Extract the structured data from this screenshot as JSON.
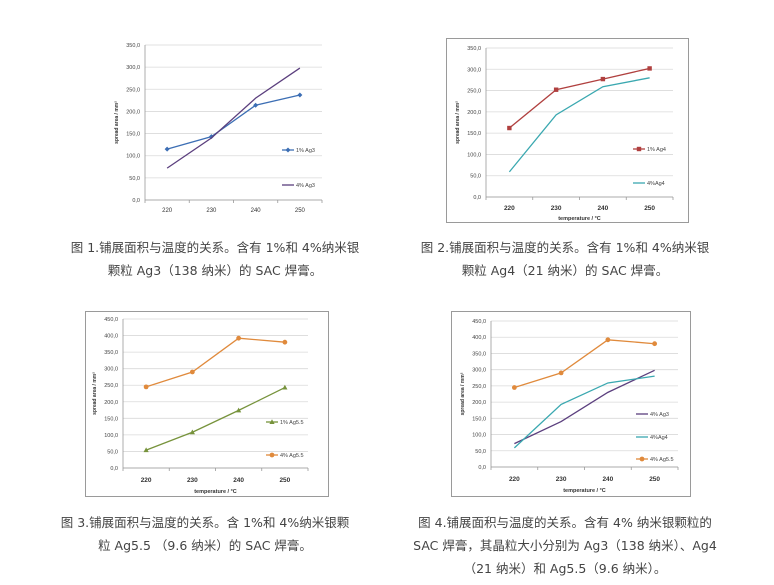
{
  "chart_data": [
    {
      "type": "line",
      "categories": [
        "220",
        "230",
        "240",
        "250"
      ],
      "xlabel": "temperature / °C",
      "ylabel": "spread area / mm²",
      "ylim": [
        0,
        350
      ],
      "yticks": [
        "0,0",
        "50,0",
        "100,0",
        "150,0",
        "200,0",
        "250,0",
        "300,0",
        "350,0"
      ],
      "grid": true,
      "legend": "right",
      "series": [
        {
          "name": "1% Ag3",
          "values": [
            115,
            143,
            214,
            237
          ],
          "color": "#3c6eb4",
          "marker": "diamond"
        },
        {
          "name": "4% Ag3",
          "values": [
            72,
            140,
            230,
            298
          ],
          "color": "#5b3f7e",
          "marker": "none"
        }
      ]
    },
    {
      "type": "line",
      "categories": [
        "220",
        "230",
        "240",
        "250"
      ],
      "xlabel": "temperature / °C",
      "ylabel": "spread area / mm²",
      "ylim": [
        0,
        350
      ],
      "yticks": [
        "0,0",
        "50,0",
        "100,0",
        "150,0",
        "200,0",
        "250,0",
        "300,0",
        "350,0"
      ],
      "grid": true,
      "legend": "right",
      "series": [
        {
          "name": "1% Ag4",
          "values": [
            162,
            252,
            277,
            302
          ],
          "color": "#b0403f",
          "marker": "square"
        },
        {
          "name": "4%Ag4",
          "values": [
            59,
            193,
            259,
            280
          ],
          "color": "#3aa8b0",
          "marker": "none"
        }
      ]
    },
    {
      "type": "line",
      "categories": [
        "220",
        "230",
        "240",
        "250"
      ],
      "xlabel": "temperature / °C",
      "ylabel": "spread area / mm²",
      "ylim": [
        0,
        450
      ],
      "yticks": [
        "0,0",
        "50,0",
        "100,0",
        "150,0",
        "200,0",
        "250,0",
        "300,0",
        "350,0",
        "400,0",
        "450,0"
      ],
      "grid": true,
      "legend": "right",
      "series": [
        {
          "name": "1% Ag5.5",
          "values": [
            54,
            108,
            174,
            243
          ],
          "color": "#77933c",
          "marker": "triangle"
        },
        {
          "name": "4% Ag5.5",
          "values": [
            245,
            290,
            392,
            380
          ],
          "color": "#e08a3c",
          "marker": "circle"
        }
      ]
    },
    {
      "type": "line",
      "categories": [
        "220",
        "230",
        "240",
        "250"
      ],
      "xlabel": "temperature / °C",
      "ylabel": "spread area / mm²",
      "ylim": [
        0,
        450
      ],
      "yticks": [
        "0,0",
        "50,0",
        "100,0",
        "150,0",
        "200,0",
        "250,0",
        "300,0",
        "350,0",
        "400,0",
        "450,0"
      ],
      "grid": true,
      "legend": "right",
      "series": [
        {
          "name": "4% Ag3",
          "values": [
            72,
            140,
            230,
            298
          ],
          "color": "#5b3f7e",
          "marker": "none"
        },
        {
          "name": "4%Ag4",
          "values": [
            59,
            193,
            259,
            280
          ],
          "color": "#3aa8b0",
          "marker": "none"
        },
        {
          "name": "4% Ag5.5",
          "values": [
            245,
            290,
            392,
            380
          ],
          "color": "#e08a3c",
          "marker": "circle"
        }
      ]
    }
  ],
  "captions": [
    {
      "lines": [
        "图 1.铺展面积与温度的关系。含有 1%和 4%纳米银",
        "颗粒 Ag3（138 纳米）的 SAC 焊膏。"
      ]
    },
    {
      "lines": [
        "图 2.铺展面积与温度的关系。含有 1%和 4%纳米银",
        "颗粒 Ag4（21 纳米）的 SAC 焊膏。"
      ]
    },
    {
      "lines": [
        "图 3.铺展面积与温度的关系。含 1%和 4%纳米银颗",
        "粒 Ag5.5 （9.6 纳米）的 SAC 焊膏。"
      ]
    },
    {
      "lines": [
        "图 4.铺展面积与温度的关系。含有 4% 纳米银颗粒的",
        "SAC 焊膏，其晶粒大小分别为 Ag3（138 纳米）、Ag4",
        "（21 纳米）和 Ag5.5（9.6 纳米）。"
      ]
    }
  ]
}
